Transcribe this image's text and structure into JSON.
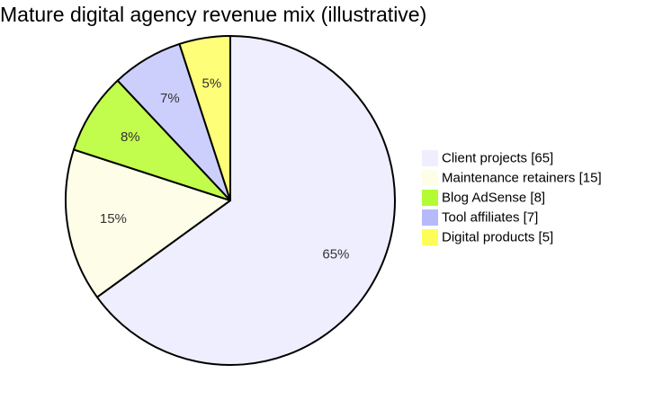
{
  "chart_data": {
    "type": "pie",
    "title": "Mature digital agency revenue mix (illustrative)",
    "slices": [
      {
        "label": "Client projects",
        "value": 65,
        "pct_label": "65%",
        "legend_label": "Client projects [65]",
        "color": "#eeeefe"
      },
      {
        "label": "Maintenance retainers",
        "value": 15,
        "pct_label": "15%",
        "legend_label": "Maintenance retainers [15]",
        "color": "#fefee8"
      },
      {
        "label": "Blog AdSense",
        "value": 8,
        "pct_label": "8%",
        "legend_label": "Blog AdSense [8]",
        "color": "#c2fc4c"
      },
      {
        "label": "Tool affiliates",
        "value": 7,
        "pct_label": "7%",
        "legend_label": "Tool affiliates [7]",
        "color": "#cccffc"
      },
      {
        "label": "Digital products",
        "value": 5,
        "pct_label": "5%",
        "legend_label": "Digital products [5]",
        "color": "#fefe78"
      }
    ],
    "start_position": "top",
    "direction": "clockwise",
    "legend_position": "right",
    "legend_swatch_colors": [
      "#eeeefe",
      "#fefee8",
      "#b3fc34",
      "#b6bafb",
      "#fdfd5a"
    ],
    "edge_color": "#000000"
  }
}
